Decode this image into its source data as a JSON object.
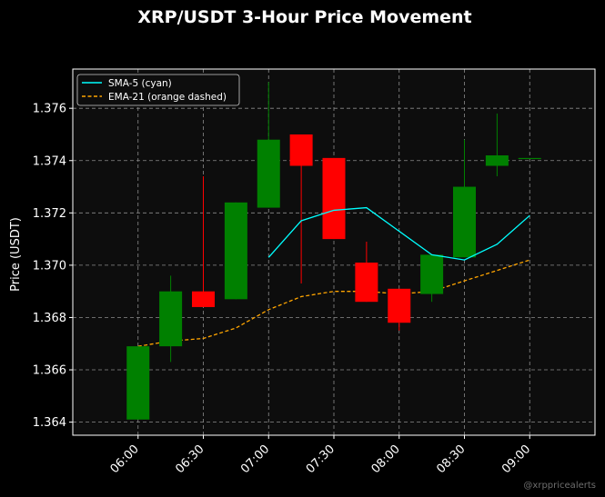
{
  "chart_data": {
    "type": "candlestick",
    "title": "XRP/USDT 3-Hour Price Movement",
    "xlabel": "",
    "ylabel": "Price (USDT)",
    "ylim": [
      1.6635,
      1.3775
    ],
    "y_ticks": [
      "1.364",
      "1.366",
      "1.368",
      "1.370",
      "1.372",
      "1.374",
      "1.376"
    ],
    "x_ticks": [
      "06:00",
      "06:30",
      "07:00",
      "07:30",
      "08:00",
      "08:30",
      "09:00"
    ],
    "grid": true,
    "legend_position": "top-left",
    "colors": {
      "background": "#000000",
      "plot_background": "#0d0d0d",
      "up": "#008000",
      "down": "#ff0000",
      "sma": "#00ffff",
      "ema": "#ffa500",
      "grid": "#8c8c8c",
      "watermark": "#6e6e6e"
    },
    "candles": [
      {
        "time": "06:00",
        "open": 1.3641,
        "high": 1.3669,
        "low": 1.3641,
        "close": 1.3669
      },
      {
        "time": "06:15",
        "open": 1.3669,
        "high": 1.3696,
        "low": 1.3663,
        "close": 1.369
      },
      {
        "time": "06:30",
        "open": 1.369,
        "high": 1.3734,
        "low": 1.3684,
        "close": 1.3684
      },
      {
        "time": "06:45",
        "open": 1.3687,
        "high": 1.3724,
        "low": 1.3687,
        "close": 1.3724
      },
      {
        "time": "07:00",
        "open": 1.3722,
        "high": 1.377,
        "low": 1.3722,
        "close": 1.3748
      },
      {
        "time": "07:15",
        "open": 1.375,
        "high": 1.375,
        "low": 1.3693,
        "close": 1.3738
      },
      {
        "time": "07:30",
        "open": 1.3741,
        "high": 1.3741,
        "low": 1.371,
        "close": 1.371
      },
      {
        "time": "07:45",
        "open": 1.3701,
        "high": 1.3709,
        "low": 1.3686,
        "close": 1.3686
      },
      {
        "time": "08:00",
        "open": 1.3691,
        "high": 1.3691,
        "low": 1.3675,
        "close": 1.3678
      },
      {
        "time": "08:15",
        "open": 1.3689,
        "high": 1.3704,
        "low": 1.3686,
        "close": 1.3704
      },
      {
        "time": "08:30",
        "open": 1.3703,
        "high": 1.3748,
        "low": 1.3703,
        "close": 1.373
      },
      {
        "time": "08:45",
        "open": 1.3738,
        "high": 1.3758,
        "low": 1.3734,
        "close": 1.3742
      },
      {
        "time": "09:00",
        "open": 1.3741,
        "high": 1.3741,
        "low": 1.3741,
        "close": 1.3741
      }
    ],
    "series": [
      {
        "name": "SMA-5 (cyan)",
        "x": [
          "07:00",
          "07:15",
          "07:30",
          "07:45",
          "08:00",
          "08:15",
          "08:30",
          "08:45",
          "09:00"
        ],
        "values": [
          1.3703,
          1.3717,
          1.3721,
          1.3722,
          1.3713,
          1.3704,
          1.3702,
          1.3708,
          1.3719
        ]
      },
      {
        "name": "EMA-21 (orange dashed)",
        "x": [
          "06:00",
          "06:15",
          "06:30",
          "06:45",
          "07:00",
          "07:15",
          "07:30",
          "07:45",
          "08:00",
          "08:15",
          "08:30",
          "08:45",
          "09:00"
        ],
        "values": [
          1.3669,
          1.3671,
          1.3672,
          1.3676,
          1.3683,
          1.3688,
          1.369,
          1.369,
          1.3689,
          1.369,
          1.3694,
          1.3698,
          1.3702
        ]
      }
    ],
    "watermark": "@xrppricealerts"
  }
}
